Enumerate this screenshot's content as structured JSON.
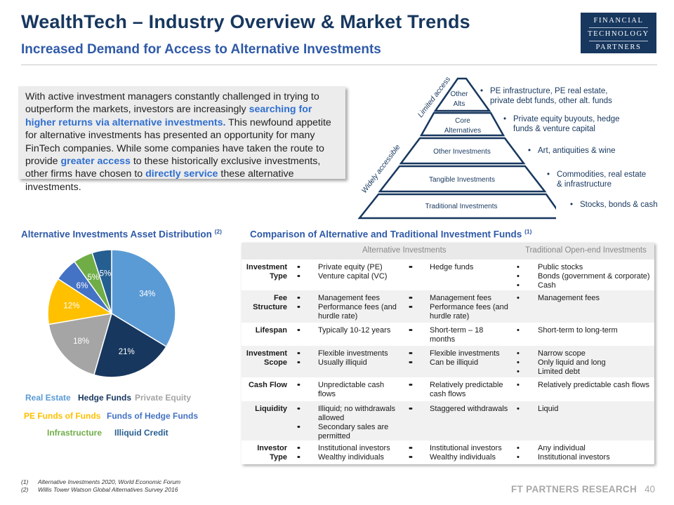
{
  "header": {
    "title": "WealthTech – Industry Overview & Market Trends",
    "subtitle": "Increased Demand for Access to Alternative Investments",
    "logo": [
      "FINANCIAL",
      "TECHNOLOGY",
      "PARTNERS"
    ]
  },
  "intro": {
    "p1": "With active investment managers constantly challenged in trying to outperform the markets, investors are increasingly ",
    "b1": "searching for higher returns via alternative investments.",
    "p2": " This newfound appetite for alternative investments has presented an opportunity for many FinTech companies. While some companies have taken the route to provide ",
    "b2": "greater access",
    "p3": " to these historically exclusive investments, other firms have chosen to ",
    "b3": "directly service",
    "p4": " these alternative investments."
  },
  "pyramid": {
    "levels": [
      "Other",
      "Alts",
      "Core",
      "Alternatives",
      "Other Investments",
      "Tangible Investments",
      "Traditional Investments"
    ],
    "side_top": "Limited access",
    "side_bottom": "Widely accessible",
    "bullets": [
      [
        "PE infrastructure, PE real estate,",
        "private debt funds, other alt. funds"
      ],
      [
        "Private equity buyouts, hedge",
        "funds & venture capital"
      ],
      [
        "Art, antiquities & wine"
      ],
      [
        "Commodities, real estate",
        "& infrastructure"
      ],
      [
        "Stocks, bonds & cash"
      ]
    ]
  },
  "pie_section": {
    "title": "Alternative Investments Asset Distribution",
    "footnote_ref": "(2)"
  },
  "chart_data": {
    "type": "pie",
    "title": "Alternative Investments Asset Distribution",
    "categories": [
      "Real Estate",
      "Hedge Funds",
      "Private Equity",
      "PE Funds of Funds",
      "Funds of Hedge Funds",
      "Infrastructure",
      "Illiquid Credit"
    ],
    "values": [
      34,
      21,
      18,
      12,
      6,
      5,
      5
    ],
    "labels": [
      "34%",
      "21%",
      "18%",
      "12%",
      "6%",
      "5%",
      "5%"
    ],
    "colors": [
      "#5b9bd5",
      "#17375e",
      "#a5a5a5",
      "#ffc000",
      "#4472c4",
      "#70ad47",
      "#255e91"
    ],
    "legend_colors": [
      "#5b9bd5",
      "#17375e",
      "#a5a5a5",
      "#ffc000",
      "#4472c4",
      "#70ad47",
      "#255e91"
    ],
    "legend_placement": "bottom"
  },
  "table_section": {
    "title": "Comparison of Alternative and Traditional Investment Funds",
    "footnote_ref": "(1)",
    "header_alt": "Alternative Investments",
    "header_trad": "Traditional Open-end Investments",
    "rows": [
      {
        "label": [
          "Investment",
          "Type"
        ],
        "c1": [
          "Private equity (PE)",
          "Venture capital (VC)"
        ],
        "c2": [
          "Hedge funds"
        ],
        "c3": [
          "Public stocks",
          "Bonds (government & corporate)",
          "Cash"
        ]
      },
      {
        "label": [
          "Fee",
          "Structure"
        ],
        "c1": [
          "Management fees",
          "Performance fees (and|hurdle rate)"
        ],
        "c2": [
          "Management fees",
          "Performance fees (and|hurdle rate)"
        ],
        "c3": [
          "Management fees"
        ]
      },
      {
        "label": [
          "Lifespan"
        ],
        "c1": [
          "Typically 10-12 years"
        ],
        "c2": [
          "Short-term – 18|months"
        ],
        "c3": [
          "Short-term to long-term"
        ]
      },
      {
        "label": [
          "Investment",
          "Scope"
        ],
        "c1": [
          "Flexible investments",
          "Usually illiquid"
        ],
        "c2": [
          "Flexible investments",
          "Can be illiquid"
        ],
        "c3": [
          "Narrow scope",
          "Only liquid and long",
          "Limited debt"
        ]
      },
      {
        "label": [
          "Cash Flow"
        ],
        "c1": [
          "Unpredictable cash|flows"
        ],
        "c2": [
          "Relatively predictable|cash flows"
        ],
        "c3": [
          "Relatively predictable cash flows"
        ]
      },
      {
        "label": [
          "Liquidity"
        ],
        "c1": [
          "Illiquid; no withdrawals|allowed",
          "Secondary sales are|permitted"
        ],
        "c2": [
          "Staggered withdrawals"
        ],
        "c3": [
          "Liquid"
        ]
      },
      {
        "label": [
          "Investor",
          "Type"
        ],
        "c1": [
          "Institutional investors",
          "Wealthy individuals"
        ],
        "c2": [
          "Institutional investors",
          "Wealthy individuals"
        ],
        "c3": [
          "Any individual",
          "Institutional investors"
        ]
      }
    ]
  },
  "footnotes": [
    {
      "num": "(1)",
      "text": "Alternative Investments 2020, World Economic Forum"
    },
    {
      "num": "(2)",
      "text": "Willis Tower Watson Global Alternatives Survey 2016"
    }
  ],
  "footer": {
    "brand": "FT PARTNERS RESEARCH",
    "page": "40"
  }
}
